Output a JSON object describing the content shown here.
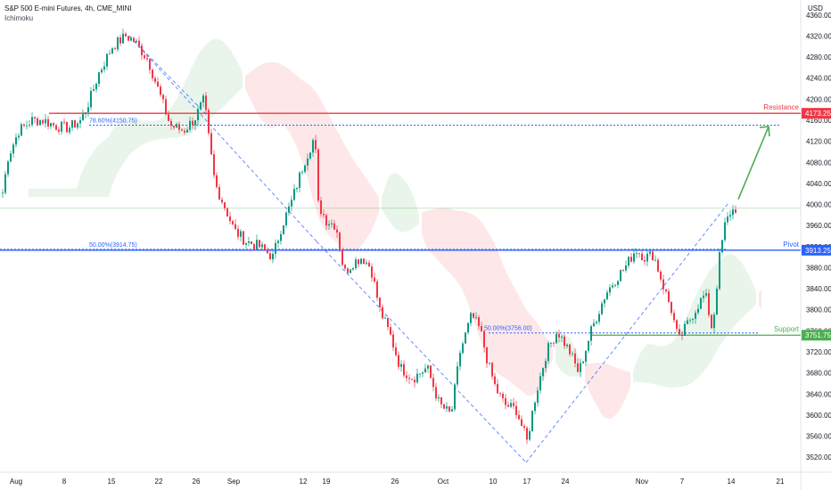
{
  "header": {
    "title": "S&P 500 E-mini Futures, 4h, CME_MINI",
    "indicator": "Ichimoku"
  },
  "chart_data": {
    "type": "candlestick",
    "currency_label": "USD",
    "ylim": [
      3500,
      4380
    ],
    "y_ticks": [
      3520,
      3560,
      3600,
      3640,
      3680,
      3720,
      3760,
      3800,
      3840,
      3880,
      3920,
      3960,
      4000,
      4040,
      4080,
      4120,
      4160,
      4200,
      4240,
      4280,
      4320,
      4360
    ],
    "x_ticks": [
      "Aug",
      "8",
      "15",
      "22",
      "26",
      "Sep",
      "12",
      "19",
      "26",
      "Oct",
      "10",
      "17",
      "24",
      "Nov",
      "7",
      "14",
      "21"
    ],
    "levels": [
      {
        "name": "Resistance",
        "tag": "4173.25",
        "value": 4173.25,
        "color": "#f23645"
      },
      {
        "name": "Pivot",
        "tag": "3913.25",
        "value": 3913.25,
        "color": "#2962ff"
      },
      {
        "name": "Support",
        "tag": "3751.75",
        "value": 3751.75,
        "color": "#4caf50"
      }
    ],
    "fib_labels": [
      {
        "text": "78.60%(4150.75)",
        "value": 4150.75
      },
      {
        "text": "50.00%(3914.75)",
        "value": 3914.75
      },
      {
        "text": "50.00%(3756.00)",
        "value": 3756.0
      }
    ],
    "current_price_line": 3993,
    "colors": {
      "up": "#089981",
      "down": "#f23645",
      "cloud_bull": "#4caf50",
      "cloud_bear": "#f23645",
      "fib": "#2962ff",
      "projection": "#4caf50"
    },
    "series": [
      {
        "name": "",
        "anchors": [
          [
            0,
            4000
          ],
          [
            8,
            4090
          ],
          [
            20,
            4140
          ],
          [
            35,
            4160
          ],
          [
            48,
            4160
          ],
          [
            60,
            4150
          ],
          [
            75,
            4145
          ],
          [
            90,
            4160
          ],
          [
            100,
            4200
          ],
          [
            110,
            4250
          ],
          [
            125,
            4300
          ],
          [
            140,
            4320
          ],
          [
            150,
            4310
          ],
          [
            165,
            4275
          ],
          [
            178,
            4210
          ],
          [
            190,
            4150
          ],
          [
            205,
            4140
          ],
          [
            218,
            4165
          ],
          [
            228,
            4200
          ],
          [
            232,
            4140
          ],
          [
            240,
            4040
          ],
          [
            250,
            4000
          ],
          [
            262,
            3950
          ],
          [
            275,
            3930
          ],
          [
            290,
            3920
          ],
          [
            305,
            3900
          ],
          [
            315,
            3960
          ],
          [
            325,
            4000
          ],
          [
            340,
            4080
          ],
          [
            352,
            4130
          ],
          [
            356,
            4000
          ],
          [
            365,
            3970
          ],
          [
            376,
            3960
          ],
          [
            385,
            3870
          ],
          [
            395,
            3890
          ],
          [
            405,
            3900
          ],
          [
            415,
            3880
          ],
          [
            425,
            3800
          ],
          [
            437,
            3750
          ],
          [
            448,
            3690
          ],
          [
            462,
            3670
          ],
          [
            478,
            3690
          ],
          [
            492,
            3620
          ],
          [
            505,
            3600
          ],
          [
            515,
            3720
          ],
          [
            528,
            3790
          ],
          [
            538,
            3760
          ],
          [
            546,
            3700
          ],
          [
            555,
            3650
          ],
          [
            565,
            3620
          ],
          [
            578,
            3610
          ],
          [
            590,
            3550
          ],
          [
            600,
            3640
          ],
          [
            612,
            3720
          ],
          [
            624,
            3760
          ],
          [
            638,
            3720
          ],
          [
            648,
            3680
          ],
          [
            662,
            3760
          ],
          [
            678,
            3830
          ],
          [
            690,
            3860
          ],
          [
            700,
            3880
          ],
          [
            712,
            3915
          ],
          [
            722,
            3900
          ],
          [
            732,
            3905
          ],
          [
            742,
            3850
          ],
          [
            752,
            3800
          ],
          [
            760,
            3740
          ],
          [
            772,
            3780
          ],
          [
            782,
            3810
          ],
          [
            790,
            3830
          ],
          [
            798,
            3760
          ],
          [
            806,
            3900
          ],
          [
            812,
            3960
          ],
          [
            818,
            3985
          ],
          [
            826,
            3995
          ]
        ]
      }
    ]
  }
}
